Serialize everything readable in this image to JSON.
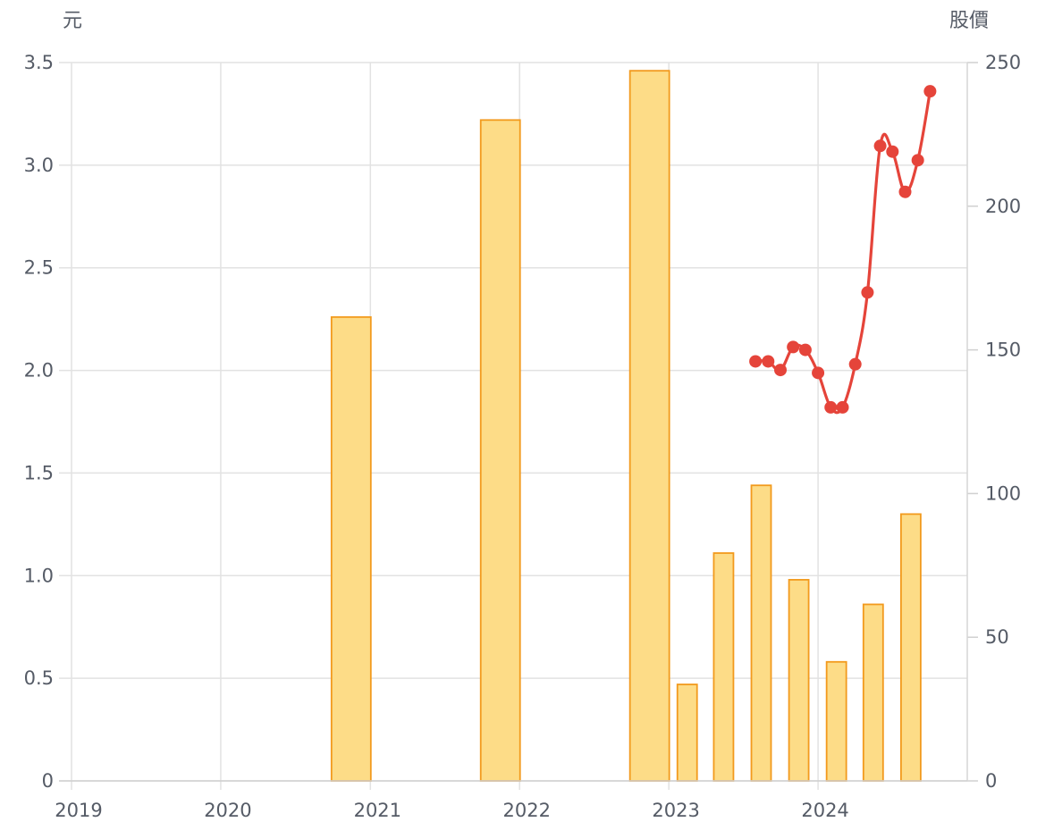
{
  "chart_data": {
    "type": "bar+line",
    "left_axis_unit": "元",
    "right_axis_unit": "股價",
    "left_ylim": [
      0,
      3.5
    ],
    "left_ticks": [
      "0",
      "0.5",
      "1.0",
      "1.5",
      "2.0",
      "2.5",
      "3.0",
      "3.5"
    ],
    "right_ylim": [
      0,
      250
    ],
    "right_ticks": [
      "0",
      "50",
      "100",
      "150",
      "200",
      "250"
    ],
    "x_ticks": [
      "2019",
      "2020",
      "2021",
      "2022",
      "2023",
      "2024"
    ],
    "x_range": [
      "2019-01-01",
      "2024-12-31"
    ],
    "grid": true,
    "bars": {
      "axis": "left",
      "unit": "元",
      "color_fill": "#fddc87",
      "color_stroke": "#f29a1d",
      "points": [
        {
          "x": "2020-11",
          "value": 2.26,
          "width": "wide"
        },
        {
          "x": "2021-11",
          "value": 3.22,
          "width": "wide"
        },
        {
          "x": "2022-11",
          "value": 3.46,
          "width": "wide"
        },
        {
          "x": "2023-02",
          "value": 0.47,
          "width": "narrow"
        },
        {
          "x": "2023-05",
          "value": 1.11,
          "width": "narrow"
        },
        {
          "x": "2023-08",
          "value": 1.44,
          "width": "narrow"
        },
        {
          "x": "2023-11",
          "value": 0.98,
          "width": "narrow"
        },
        {
          "x": "2024-02",
          "value": 0.58,
          "width": "narrow"
        },
        {
          "x": "2024-05",
          "value": 0.86,
          "width": "narrow"
        },
        {
          "x": "2024-08",
          "value": 1.3,
          "width": "narrow"
        }
      ]
    },
    "line": {
      "axis": "right",
      "unit": "股價",
      "color": "#e5443a",
      "points": [
        {
          "x": "2023-08-01",
          "value": 146
        },
        {
          "x": "2023-09-01",
          "value": 146
        },
        {
          "x": "2023-10-01",
          "value": 143
        },
        {
          "x": "2023-11-01",
          "value": 151
        },
        {
          "x": "2023-12-01",
          "value": 150
        },
        {
          "x": "2024-01-01",
          "value": 142
        },
        {
          "x": "2024-02-01",
          "value": 130
        },
        {
          "x": "2024-03-01",
          "value": 130
        },
        {
          "x": "2024-04-01",
          "value": 145
        },
        {
          "x": "2024-05-01",
          "value": 170
        },
        {
          "x": "2024-06-01",
          "value": 221
        },
        {
          "x": "2024-07-01",
          "value": 219
        },
        {
          "x": "2024-08-01",
          "value": 205
        },
        {
          "x": "2024-09-01",
          "value": 216
        },
        {
          "x": "2024-10-01",
          "value": 240
        }
      ]
    }
  }
}
